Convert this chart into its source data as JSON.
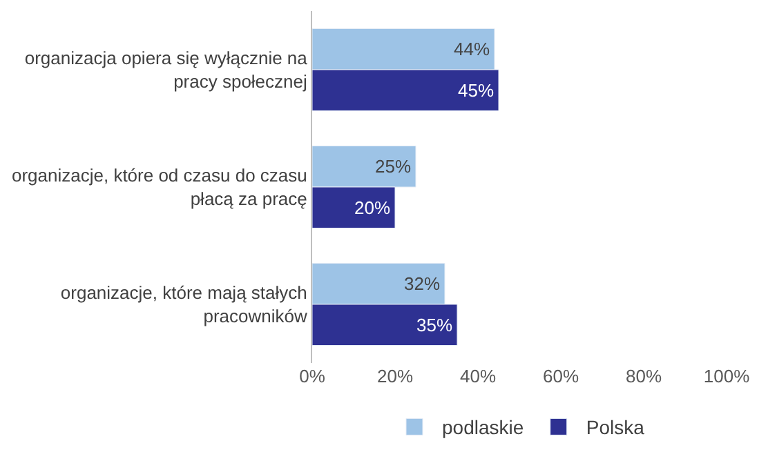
{
  "chart_data": {
    "type": "bar",
    "orientation": "horizontal",
    "categories": [
      "organizacja opiera się wyłącznie na pracy społecznej",
      "organizacje, które od czasu do czasu płacą za pracę",
      "organizacje, które mają stałych pracowników"
    ],
    "series": [
      {
        "name": "podlaskie",
        "color": "#9dc3e6",
        "values": [
          44,
          25,
          32
        ],
        "value_labels": [
          "44%",
          "25%",
          "32%"
        ]
      },
      {
        "name": "Polska",
        "color": "#2e3192",
        "values": [
          45,
          20,
          35
        ],
        "value_labels": [
          "45%",
          "20%",
          "35%"
        ]
      }
    ],
    "xlim": [
      0,
      100
    ],
    "xticks": [
      {
        "value": 0,
        "label": "0%"
      },
      {
        "value": 20,
        "label": "20%"
      },
      {
        "value": 40,
        "label": "40%"
      },
      {
        "value": 60,
        "label": "60%"
      },
      {
        "value": 80,
        "label": "80%"
      },
      {
        "value": 100,
        "label": "100%"
      }
    ],
    "legend": "bottom"
  }
}
